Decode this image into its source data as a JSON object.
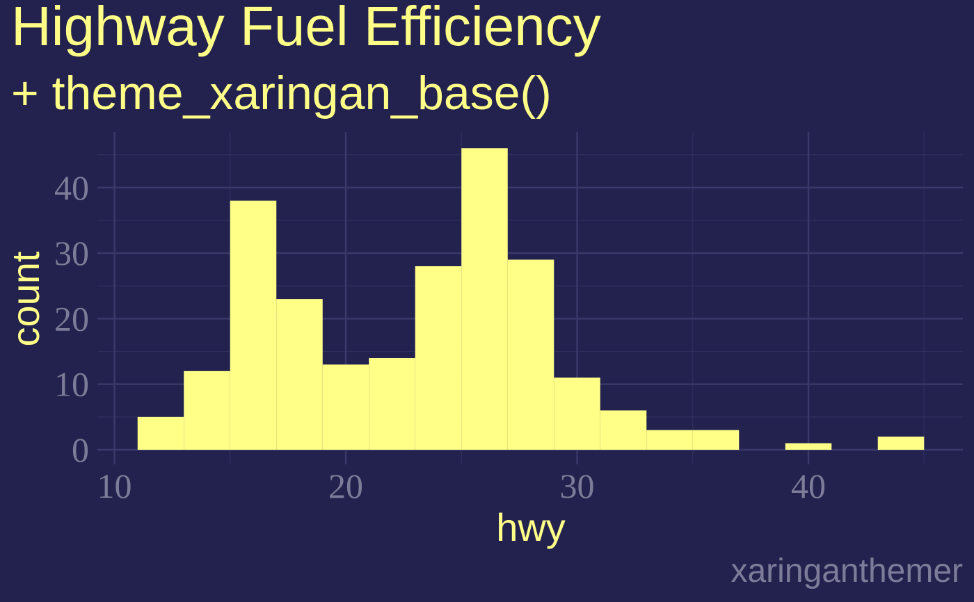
{
  "chart_data": {
    "type": "bar",
    "title": "Highway Fuel Efficiency",
    "subtitle": "+ theme_xaringan_base()",
    "xlabel": "hwy",
    "ylabel": "count",
    "caption": "xaringanthemer",
    "bin_width": 2,
    "bins": [
      {
        "x0": 11,
        "x1": 13,
        "count": 5
      },
      {
        "x0": 13,
        "x1": 15,
        "count": 12
      },
      {
        "x0": 15,
        "x1": 17,
        "count": 38
      },
      {
        "x0": 17,
        "x1": 19,
        "count": 23
      },
      {
        "x0": 19,
        "x1": 21,
        "count": 13
      },
      {
        "x0": 21,
        "x1": 23,
        "count": 14
      },
      {
        "x0": 23,
        "x1": 25,
        "count": 28
      },
      {
        "x0": 25,
        "x1": 27,
        "count": 46
      },
      {
        "x0": 27,
        "x1": 29,
        "count": 29
      },
      {
        "x0": 29,
        "x1": 31,
        "count": 11
      },
      {
        "x0": 31,
        "x1": 33,
        "count": 6
      },
      {
        "x0": 33,
        "x1": 35,
        "count": 3
      },
      {
        "x0": 35,
        "x1": 37,
        "count": 3
      },
      {
        "x0": 37,
        "x1": 39,
        "count": 0
      },
      {
        "x0": 39,
        "x1": 41,
        "count": 1
      },
      {
        "x0": 41,
        "x1": 43,
        "count": 0
      },
      {
        "x0": 43,
        "x1": 45,
        "count": 2
      }
    ],
    "x_ticks": [
      "10",
      "20",
      "30",
      "40"
    ],
    "y_ticks": [
      "0",
      "10",
      "20",
      "30",
      "40"
    ],
    "xlim": [
      9.5,
      46.5
    ],
    "ylim": [
      0,
      48.3
    ],
    "grid": true,
    "colors": {
      "background": "#23224f",
      "bar": "#ffff88",
      "title": "#ffff88",
      "tick_text": "#7d7c98",
      "grid": "#3a396a"
    }
  }
}
